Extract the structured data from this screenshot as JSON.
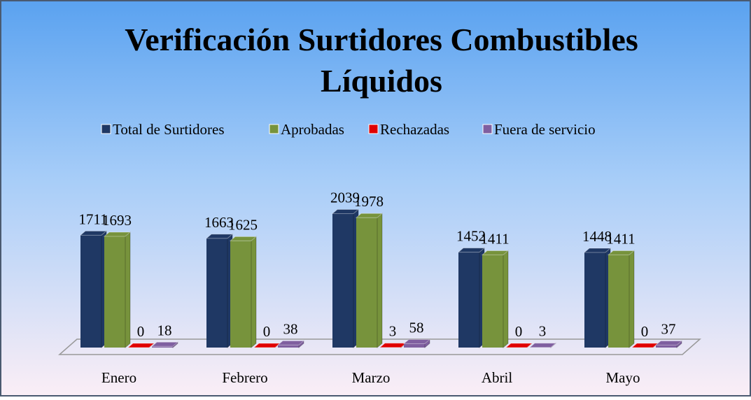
{
  "chart_data": {
    "type": "bar3d",
    "title": [
      "Verificación Surtidores Combustibles",
      "Líquidos"
    ],
    "categories": [
      "Enero",
      "Febrero",
      "Marzo",
      "Abril",
      "Mayo"
    ],
    "series": [
      {
        "name": "Total de Surtidores",
        "color": "#1f3864",
        "values": [
          1711,
          1663,
          2039,
          1452,
          1448
        ]
      },
      {
        "name": "Aprobadas",
        "color": "#77933c",
        "values": [
          1693,
          1625,
          1978,
          1411,
          1411
        ]
      },
      {
        "name": "Rechazadas",
        "color": "#e00000",
        "values": [
          0,
          0,
          3,
          0,
          0
        ]
      },
      {
        "name": "Fuera de servicio",
        "color": "#7f5fa0",
        "values": [
          18,
          38,
          58,
          3,
          37
        ]
      }
    ],
    "ylim": [
      0,
      2300
    ]
  }
}
